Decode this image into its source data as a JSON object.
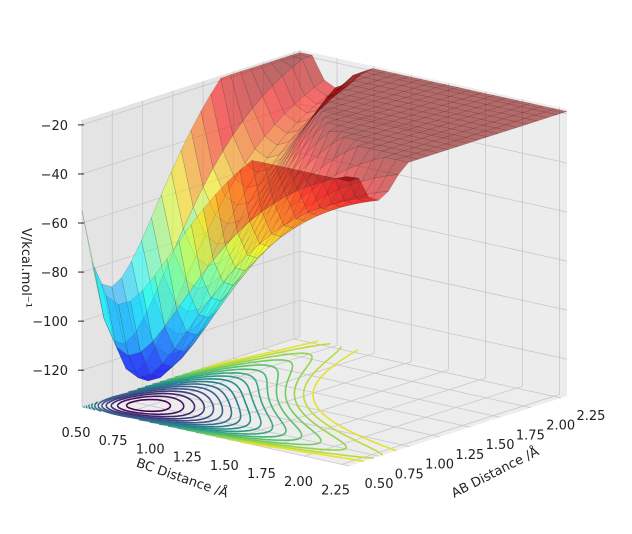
{
  "chart_data": {
    "type": "surface",
    "xlabel": "BC Distance /Å",
    "ylabel": "AB Distance /Å",
    "zlabel": "V/kcal.mol⁻¹",
    "x_ticks": [
      "0.50",
      "0.75",
      "1.00",
      "1.25",
      "1.50",
      "1.75",
      "2.00",
      "2.25"
    ],
    "y_ticks": [
      "0.50",
      "0.75",
      "1.00",
      "1.25",
      "1.50",
      "1.75",
      "2.00",
      "2.25"
    ],
    "z_ticks": [
      "−20",
      "−40",
      "−60",
      "−80",
      "−100",
      "−120"
    ],
    "xlim": [
      0.5,
      2.3
    ],
    "ylim": [
      0.5,
      2.3
    ],
    "zlim": [
      -135,
      -18
    ],
    "surface_colormap": "jet",
    "contour_colormap": "viridis",
    "grid": true,
    "colors": {
      "pane_back": "#ececec",
      "pane_side": "#e4e4e4",
      "pane_floor": "#ededed",
      "gridline": "#c8c8c8"
    }
  }
}
